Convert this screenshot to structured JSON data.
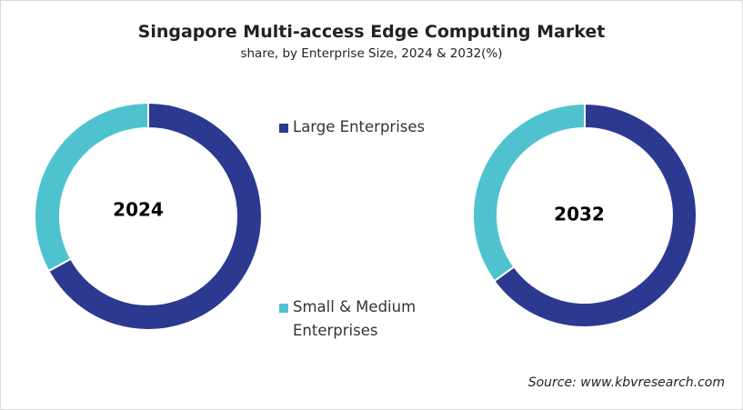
{
  "chart_data": {
    "type": "pie",
    "variant": "donut",
    "title": "Singapore Multi-access Edge Computing Market",
    "subtitle": "share, by Enterprise Size, 2024 & 2032(%)",
    "legend": [
      "Large Enterprises",
      "Small & Medium Enterprises"
    ],
    "legend_placement": "center",
    "colors": {
      "Large Enterprises": "#2b3990",
      "Small & Medium Enterprises": "#4ec3cf"
    },
    "charts": [
      {
        "label": "2024",
        "values": {
          "Large Enterprises": 67,
          "Small & Medium Enterprises": 33
        }
      },
      {
        "label": "2032",
        "values": {
          "Large Enterprises": 65,
          "Small & Medium Enterprises": 35
        }
      }
    ],
    "source": "Source: www.kbvresearch.com"
  },
  "legend_labels": {
    "large": "Large Enterprises",
    "small_line1": "Small & Medium",
    "small_line2": "Enterprises"
  }
}
